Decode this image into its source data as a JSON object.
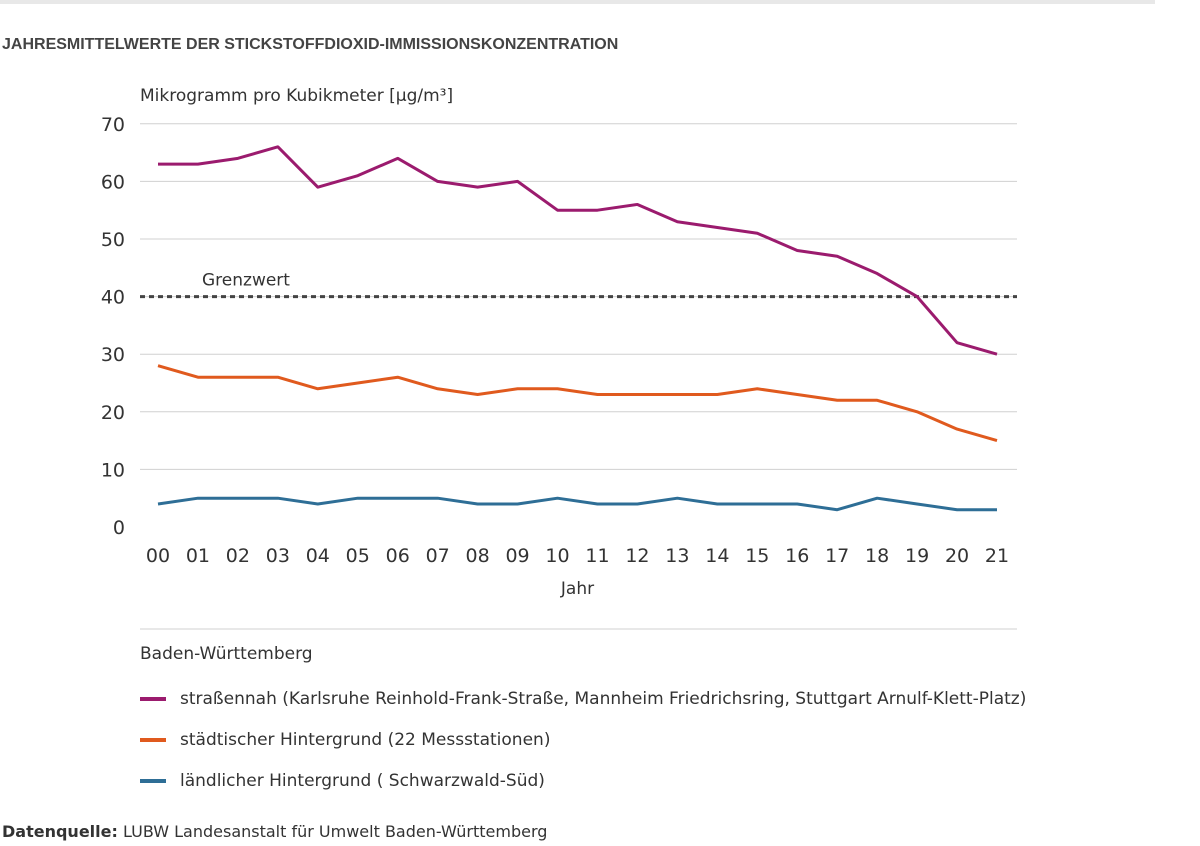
{
  "title": "JAHRESMITTELWERTE DER STICKSTOFFDIOXID-IMMISSIONSKONZENTRATION",
  "source_label": "Datenquelle:",
  "source_text": "LUBW Landesanstalt für Umwelt Baden-Württemberg",
  "chart_data": {
    "type": "line",
    "ylabel": "Mikrogramm pro Kubikmeter [µg/m³]",
    "xlabel": "Jahr",
    "ylim": [
      0,
      70
    ],
    "yticks": [
      0,
      10,
      20,
      30,
      40,
      50,
      60,
      70
    ],
    "grid": true,
    "x": [
      "00",
      "01",
      "02",
      "03",
      "04",
      "05",
      "06",
      "07",
      "08",
      "09",
      "10",
      "11",
      "12",
      "13",
      "14",
      "15",
      "16",
      "17",
      "18",
      "19",
      "20",
      "21"
    ],
    "threshold": {
      "label": "Grenzwert",
      "value": 40
    },
    "legend_title": "Baden-Württemberg",
    "legend_placement": "bottom",
    "series": [
      {
        "name": "straßennah (Karlsruhe Reinhold-Frank-Straße, Mannheim Friedrichsring, Stuttgart Arnulf-Klett-Platz)",
        "color": "#9b1b6e",
        "values": [
          63,
          63,
          64,
          66,
          59,
          61,
          64,
          60,
          59,
          60,
          55,
          55,
          56,
          53,
          52,
          51,
          48,
          47,
          44,
          40,
          32,
          30
        ]
      },
      {
        "name": "städtischer Hintergrund (22 Messstationen)",
        "color": "#e05a1e",
        "values": [
          28,
          26,
          26,
          26,
          24,
          25,
          26,
          24,
          23,
          24,
          24,
          23,
          23,
          23,
          23,
          24,
          23,
          22,
          22,
          20,
          17,
          15
        ]
      },
      {
        "name": "ländlicher Hintergrund ( Schwarzwald-Süd)",
        "color": "#2e6e96",
        "values": [
          4,
          5,
          5,
          5,
          4,
          5,
          5,
          5,
          4,
          4,
          5,
          4,
          4,
          5,
          4,
          4,
          4,
          3,
          5,
          4,
          3,
          3
        ]
      }
    ]
  }
}
